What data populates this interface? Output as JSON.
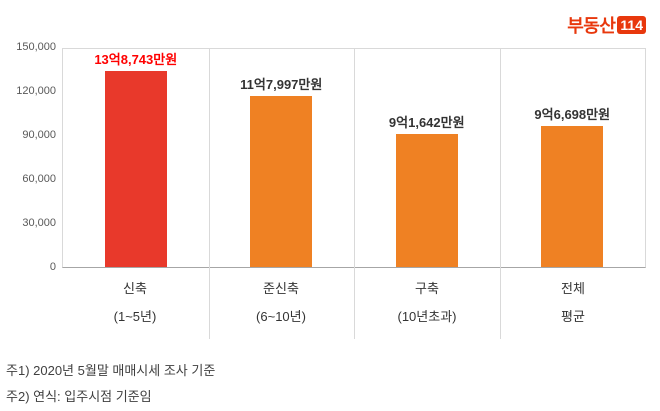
{
  "logo": {
    "text": "부동산",
    "badge": "114"
  },
  "chart_data": {
    "type": "bar",
    "title": "",
    "xlabel": "",
    "ylabel": "",
    "categories": [
      "신축",
      "준신축",
      "구축",
      "전체"
    ],
    "subcategories": [
      "(1~5년)",
      "(6~10년)",
      "(10년초과)",
      "평균"
    ],
    "values": [
      138743,
      117997,
      91642,
      96698
    ],
    "value_labels": [
      "13억8,743만원",
      "11억7,997만원",
      "9억1,642만원",
      "9억6,698만원"
    ],
    "bar_colors": [
      "#e8392b",
      "#ef8123",
      "#ef8123",
      "#ef8123"
    ],
    "value_label_colors": [
      "#ff0000",
      "#333333",
      "#333333",
      "#333333"
    ],
    "ylim": [
      0,
      150000
    ],
    "yticks": [
      "150,000",
      "120,000",
      "90,000",
      "60,000",
      "30,000",
      "0"
    ],
    "grid": "vertical category separators, outer plot border, no horizontal gridlines",
    "legend": "none"
  },
  "notes": [
    "주1) 2020년 5월말 매매시세 조사 기준",
    "주2) 연식: 입주시점 기준임"
  ]
}
